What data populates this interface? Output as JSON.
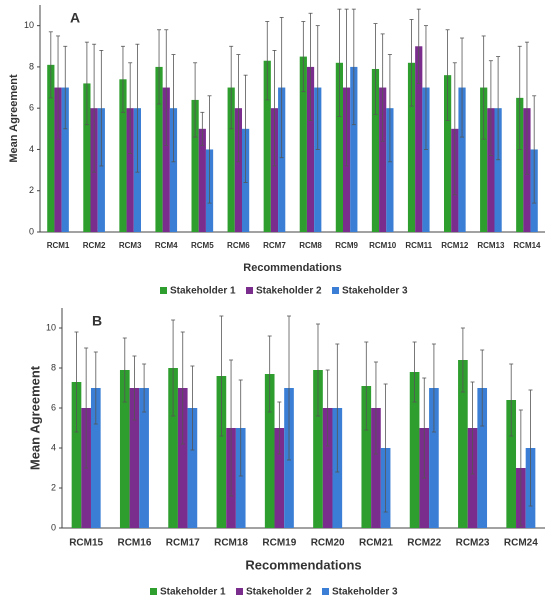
{
  "chart_data": [
    {
      "type": "bar",
      "panel_label": "A",
      "ylabel": "Mean Agreement",
      "xlabel": "Recommendations",
      "categories": [
        "RCM1",
        "RCM2",
        "RCM3",
        "RCM4",
        "RCM5",
        "RCM6",
        "RCM7",
        "RCM8",
        "RCM9",
        "RCM10",
        "RCM11",
        "RCM12",
        "RCM13",
        "RCM14"
      ],
      "series": [
        {
          "name": "Stakeholder 1",
          "color": "#2e9e2e",
          "values": [
            8.1,
            7.2,
            7.4,
            8.0,
            6.4,
            7.0,
            8.3,
            8.5,
            8.2,
            7.9,
            8.2,
            7.6,
            7.0,
            6.5
          ],
          "errors": [
            1.6,
            2,
            1.6,
            1.8,
            1.8,
            2,
            1.9,
            1.7,
            2.6,
            2.2,
            2.1,
            2.2,
            2.5,
            2.5
          ]
        },
        {
          "name": "Stakeholder 2",
          "color": "#7b2d8e",
          "values": [
            7,
            6,
            6,
            7,
            5,
            6,
            6,
            8,
            7,
            7,
            9,
            5,
            6,
            6
          ],
          "errors": [
            2.5,
            3.1,
            2.2,
            2.8,
            0.8,
            2.6,
            2.8,
            2.6,
            3.8,
            2.6,
            1.8,
            3.2,
            2.3,
            3.2
          ]
        },
        {
          "name": "Stakeholder 3",
          "color": "#3a7fd5",
          "values": [
            7,
            6,
            6,
            6,
            4,
            5,
            7,
            7,
            8,
            6,
            7,
            7,
            6,
            4
          ],
          "errors": [
            2,
            2.8,
            3.1,
            2.6,
            2.6,
            2.6,
            3.4,
            3,
            2.8,
            2.6,
            3,
            2.4,
            2.5,
            2.6
          ]
        }
      ],
      "ylim": [
        0,
        11
      ],
      "yticks": [
        0,
        2,
        4,
        6,
        8,
        10
      ]
    },
    {
      "type": "bar",
      "panel_label": "B",
      "ylabel": "Mean Agreement",
      "xlabel": "Recommendations",
      "categories": [
        "RCM15",
        "RCM16",
        "RCM17",
        "RCM18",
        "RCM19",
        "RCM20",
        "RCM21",
        "RCM22",
        "RCM23",
        "RCM24"
      ],
      "series": [
        {
          "name": "Stakeholder 1",
          "color": "#2e9e2e",
          "values": [
            7.3,
            7.9,
            8.0,
            7.6,
            7.7,
            7.9,
            7.1,
            7.8,
            8.4,
            6.4
          ],
          "errors": [
            2.5,
            1.6,
            2.4,
            3,
            1.9,
            2.3,
            2.2,
            1.5,
            1.6,
            1.8
          ]
        },
        {
          "name": "Stakeholder 2",
          "color": "#7b2d8e",
          "values": [
            6,
            7,
            7,
            5,
            5,
            6,
            6,
            5,
            5,
            3
          ],
          "errors": [
            3,
            1.6,
            2.8,
            3.4,
            1.3,
            1.9,
            2.3,
            2.5,
            2.3,
            2.9
          ]
        },
        {
          "name": "Stakeholder 3",
          "color": "#3a7fd5",
          "values": [
            7,
            7,
            6,
            5,
            7,
            6,
            4,
            7,
            7,
            4
          ],
          "errors": [
            1.8,
            1.2,
            2.1,
            2.4,
            3.6,
            3.2,
            3.2,
            2.2,
            1.9,
            2.9
          ]
        }
      ],
      "ylim": [
        0,
        11
      ],
      "yticks": [
        0,
        2,
        4,
        6,
        8,
        10
      ]
    }
  ]
}
